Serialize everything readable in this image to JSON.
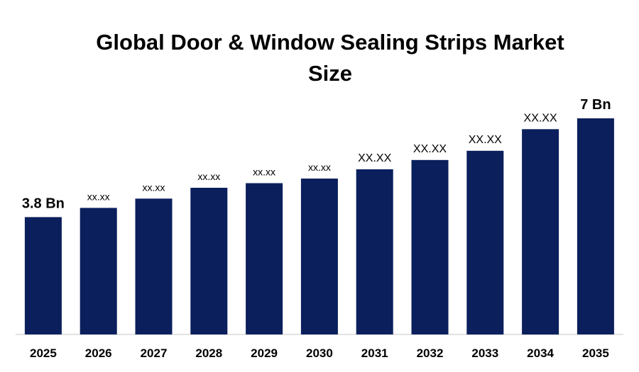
{
  "chart_data": {
    "type": "bar",
    "title": "Global Door & Window Sealing Strips Market Size",
    "xlabel": "",
    "ylabel": "",
    "categories": [
      "2025",
      "2026",
      "2027",
      "2028",
      "2029",
      "2030",
      "2031",
      "2032",
      "2033",
      "2034",
      "2035"
    ],
    "values": [
      3.8,
      4.1,
      4.4,
      4.75,
      4.9,
      5.05,
      5.35,
      5.65,
      5.95,
      6.65,
      7.0
    ],
    "data_labels": [
      "3.8 Bn",
      "xx.xx",
      "xx.xx",
      "xx.xx",
      "xx.xx",
      "xx.xx",
      "XX.XX",
      "XX.XX",
      "XX.XX",
      "XX.XX",
      "7 Bn"
    ],
    "ylim": [
      0,
      7.0
    ],
    "bar_color": "#0a1f5c",
    "grid": false,
    "legend": "none"
  }
}
